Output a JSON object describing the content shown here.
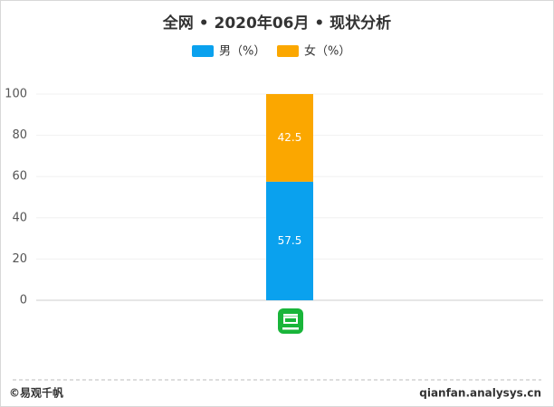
{
  "chart_data": {
    "type": "stacked_bar",
    "title": "全网 • 2020年06月 • 现状分析",
    "categories": [
      null
    ],
    "series": [
      {
        "name": "男（%）",
        "color": "#0aa1ee",
        "values": [
          57.5
        ]
      },
      {
        "name": "女（%）",
        "color": "#fba700",
        "values": [
          42.5
        ]
      }
    ],
    "ylim": [
      0,
      100
    ],
    "yticks": [
      0,
      20,
      40,
      60,
      80,
      100
    ],
    "grid": true,
    "legend": "top"
  },
  "footer": {
    "left": "©易观千帆",
    "right": "qianfan.analysys.cn"
  }
}
